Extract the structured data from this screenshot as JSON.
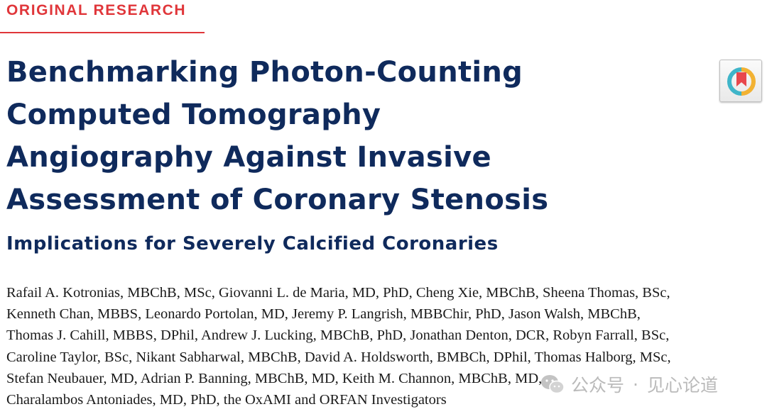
{
  "header": {
    "section_label": "ORIGINAL RESEARCH"
  },
  "article": {
    "title_lines": [
      "Benchmarking Photon-Counting",
      "Computed Tomography",
      "Angiography Against Invasive",
      "Assessment of Coronary Stenosis"
    ],
    "subtitle": "Implications for Severely Calcified Coronaries",
    "author_lines": [
      "Rafail A. Kotronias, MBChB, MSc, Giovanni L. de Maria, MD, PhD, Cheng Xie, MBChB, Sheena Thomas, BSc,",
      "Kenneth Chan, MBBS, Leonardo Portolan, MD, Jeremy P. Langrish, MBBChir, PhD, Jason Walsh, MBChB,",
      "Thomas J. Cahill, MBBS, DPhil, Andrew J. Lucking, MBChB, PhD, Jonathan Denton, DCR, Robyn Farrall, BSc,",
      "Caroline Taylor, BSc, Nikant Sabharwal, MBChB, David A. Holdsworth, BMBCh, DPhil, Thomas Halborg, MSc,",
      "Stefan Neubauer, MD, Adrian P. Banning, MBChB, MD, Keith M. Channon, MBChB, MD,",
      "Charalambos Antoniades, MD, PhD, the OxAMI and ORFAN Investigators"
    ]
  },
  "crossmark": {
    "icon": "crossmark-icon",
    "colors": {
      "ribbon": "#e8474c",
      "ring_left": "#3fb5c9",
      "ring_right": "#f2b233"
    }
  },
  "watermark": {
    "icon": "wechat-icon",
    "source": "公众号",
    "separator": "·",
    "account": "见心论道"
  },
  "colors": {
    "accent_red": "#e0363a",
    "title_navy": "#0f2a5c",
    "body_text": "#1a1a1a"
  }
}
